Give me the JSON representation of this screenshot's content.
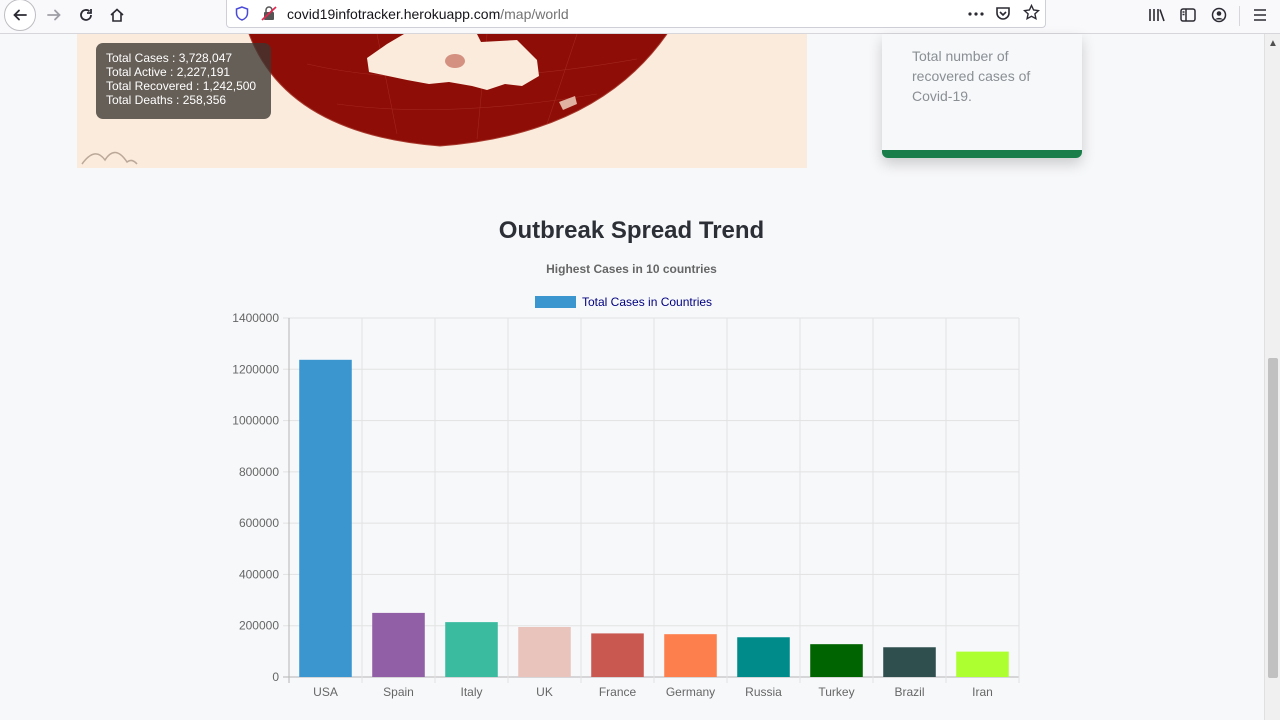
{
  "browser": {
    "url_host": "covid19infotracker.herokuapp.com",
    "url_path": "/map/world"
  },
  "map": {
    "tooltip": {
      "cases": "Total Cases : 3,728,047",
      "active": "Total Active : 2,227,191",
      "recovered": "Total Recovered : 1,242,500",
      "deaths": "Total Deaths : 258,356"
    }
  },
  "card": {
    "text": "Total number of recovered cases of Covid-19.",
    "accent_color": "#1a7e4a"
  },
  "chart_data": {
    "type": "bar",
    "title": "Outbreak Spread Trend",
    "subtitle": "Highest Cases in 10 countries",
    "legend": "Total Cases in Countries",
    "categories": [
      "USA",
      "Spain",
      "Italy",
      "UK",
      "France",
      "Germany",
      "Russia",
      "Turkey",
      "Brazil",
      "Iran"
    ],
    "values": [
      1237000,
      250000,
      214000,
      195000,
      170000,
      167000,
      155000,
      128000,
      116000,
      99000
    ],
    "colors": [
      "#3b96d0",
      "#915fa6",
      "#3abba0",
      "#e8c4bc",
      "#c95850",
      "#fe7f4e",
      "#008b8b",
      "#006400",
      "#2f4f4f",
      "#adff2f"
    ],
    "ylim": [
      0,
      1400000
    ],
    "yticks": [
      "0",
      "200000",
      "400000",
      "600000",
      "800000",
      "1000000",
      "1200000",
      "1400000"
    ],
    "grid": true,
    "legend_position": "top"
  }
}
